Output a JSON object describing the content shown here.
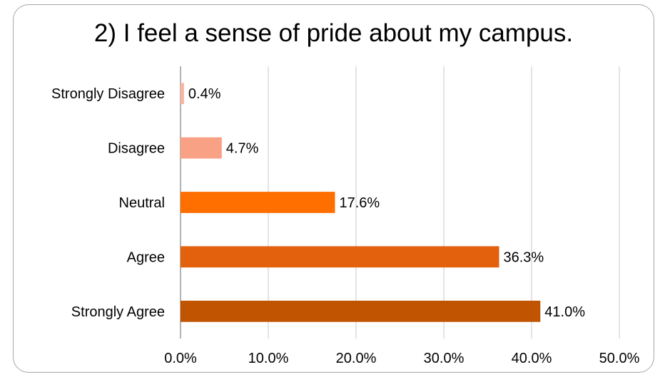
{
  "chart_data": {
    "type": "bar",
    "orientation": "horizontal",
    "title": "2) I feel a sense of pride about my campus.",
    "categories": [
      "Strongly Disagree",
      "Disagree",
      "Neutral",
      "Agree",
      "Strongly Agree"
    ],
    "values": [
      0.4,
      4.7,
      17.6,
      36.3,
      41.0
    ],
    "data_labels": [
      "0.4%",
      "4.7%",
      "17.6%",
      "36.3%",
      "41.0%"
    ],
    "bar_colors": [
      "#f8b5a1",
      "#f9a184",
      "#ff6f00",
      "#e3600c",
      "#c05400"
    ],
    "xlim": [
      0,
      50
    ],
    "x_ticks": [
      0,
      10,
      20,
      30,
      40,
      50
    ],
    "x_tick_labels": [
      "0.0%",
      "10.0%",
      "20.0%",
      "30.0%",
      "40.0%",
      "50.0%"
    ],
    "xlabel": "",
    "ylabel": "",
    "grid": true,
    "legend": "none"
  }
}
